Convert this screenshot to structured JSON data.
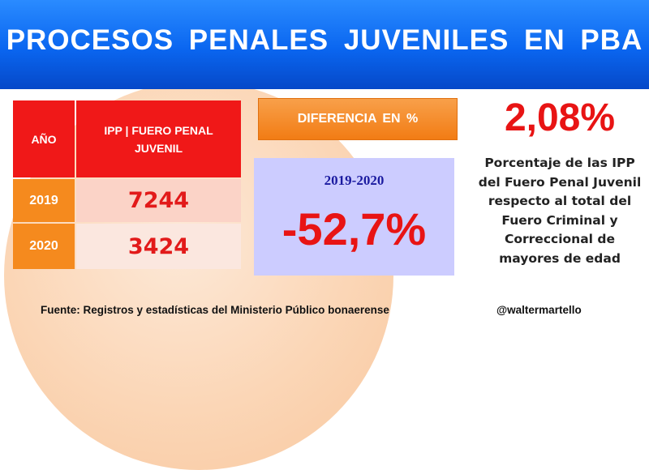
{
  "banner": {
    "title": "PROCESOS  PENALES  JUVENILES  EN PBA"
  },
  "table": {
    "header_year": "AÑO",
    "header_ipp": "IPP | FUERO PENAL JUVENIL",
    "rows": [
      {
        "year": "2019",
        "value": "7244"
      },
      {
        "year": "2020",
        "value": "3424"
      }
    ]
  },
  "difference": {
    "button_label": "DIFERENCIA  EN %",
    "period": "2019-2020",
    "value": "-52,7%"
  },
  "share": {
    "percent": "2,08%",
    "description": "Porcentaje de las IPP del Fuero Penal Juvenil respecto al total del Fuero Criminal y Correccional de mayores de edad"
  },
  "footer": {
    "source": "Fuente: Registros y estadísticas  del Ministerio Público bonaerense",
    "handle": "@waltermartello"
  },
  "colors": {
    "banner_blue": "#0a66f0",
    "header_red": "#f01818",
    "year_orange": "#f58a1e",
    "value_red": "#e21a1a",
    "diff_box": "#ccccff"
  }
}
